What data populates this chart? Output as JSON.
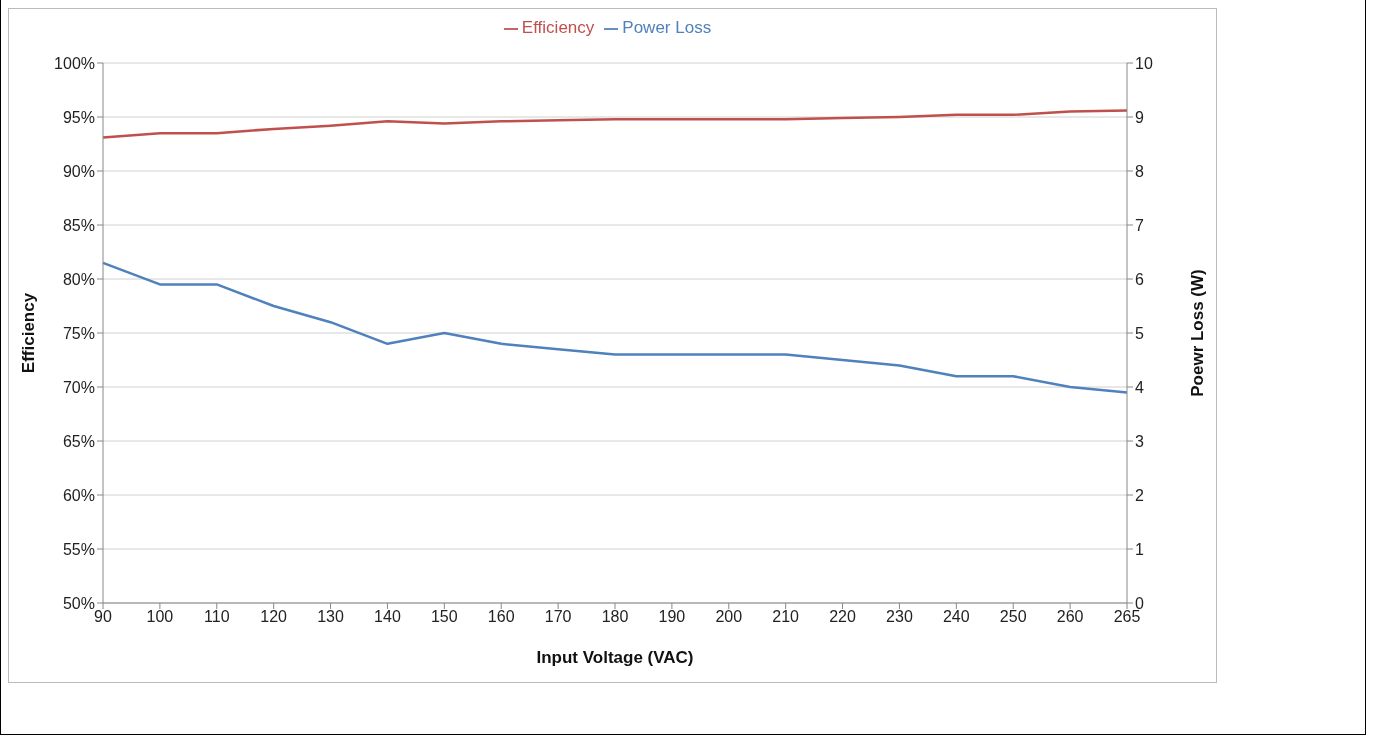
{
  "chart_data": {
    "type": "line",
    "xlabel": "Input Voltage (VAC)",
    "ylabel": "Efficiency",
    "y2label": "Poewr Loss (W)",
    "categories": [
      "90",
      "100",
      "110",
      "120",
      "130",
      "140",
      "150",
      "160",
      "170",
      "180",
      "190",
      "200",
      "210",
      "220",
      "230",
      "240",
      "250",
      "260",
      "265"
    ],
    "series": [
      {
        "name": "Efficiency",
        "color": "#c0504d",
        "values": [
          93.1,
          93.5,
          93.5,
          93.9,
          94.2,
          94.6,
          94.4,
          94.6,
          94.7,
          94.8,
          94.8,
          94.8,
          94.8,
          94.9,
          95.0,
          95.2,
          95.2,
          95.5,
          95.6
        ]
      },
      {
        "name": "Power Loss",
        "color": "#4f81bd",
        "axis": "y2",
        "values": [
          6.3,
          5.9,
          5.9,
          5.5,
          5.2,
          4.8,
          5.0,
          4.8,
          4.7,
          4.6,
          4.6,
          4.6,
          4.6,
          4.5,
          4.4,
          4.2,
          4.2,
          4.0,
          3.9
        ]
      }
    ],
    "ylim": [
      50,
      100
    ],
    "yticks": [
      {
        "value": 50,
        "label": "50%"
      },
      {
        "value": 55,
        "label": "55%"
      },
      {
        "value": 60,
        "label": "60%"
      },
      {
        "value": 65,
        "label": "65%"
      },
      {
        "value": 70,
        "label": "70%"
      },
      {
        "value": 75,
        "label": "75%"
      },
      {
        "value": 80,
        "label": "80%"
      },
      {
        "value": 85,
        "label": "85%"
      },
      {
        "value": 90,
        "label": "90%"
      },
      {
        "value": 95,
        "label": "95%"
      },
      {
        "value": 100,
        "label": "100%"
      }
    ],
    "y2lim": [
      0,
      10
    ],
    "y2ticks": [
      0,
      1,
      2,
      3,
      4,
      5,
      6,
      7,
      8,
      9,
      10
    ],
    "grid": "y",
    "legend": "top",
    "marker": "none",
    "line_style": "solid"
  }
}
